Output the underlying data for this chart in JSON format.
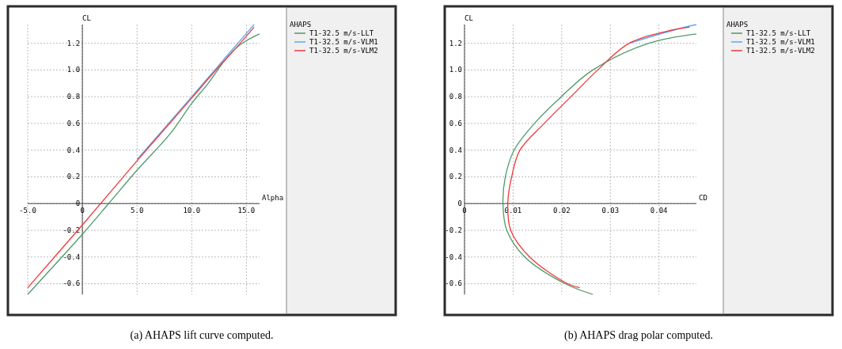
{
  "chart_data": [
    {
      "type": "line",
      "xlabel": "Alpha",
      "ylabel": "CL",
      "legend_title": "AHAPS",
      "legend": "right",
      "grid": true,
      "annotations": [
        "(a) AHAPS lift curve computed."
      ],
      "xlim": [
        -5,
        16.2
      ],
      "ylim": [
        -0.68,
        1.34
      ],
      "xticks": [
        {
          "value": -5,
          "label": "-5.0"
        },
        0,
        {
          "value": 5,
          "label": "5.0"
        },
        {
          "value": 10,
          "label": "10.0"
        },
        {
          "value": 15,
          "label": "15.0"
        }
      ],
      "yticks": [
        -0.6,
        -0.4,
        -0.2,
        0,
        0.2,
        0.4,
        0.6,
        0.8,
        {
          "value": 1,
          "label": "1.0"
        },
        1.2
      ],
      "series": [
        {
          "name": "T1-32.5 m/s-LLT",
          "color": "#4e9a6a",
          "x": [
            -5,
            0,
            2.4,
            5,
            8,
            10,
            11.5,
            13,
            14,
            15,
            16.2
          ],
          "values": [
            -0.68,
            -0.23,
            0,
            0.25,
            0.52,
            0.75,
            0.9,
            1.07,
            1.16,
            1.22,
            1.27
          ]
        },
        {
          "name": "T1-32.5 m/s-VLM1",
          "color": "#5aa9f5",
          "x": [
            5,
            10,
            12,
            14,
            15.7
          ],
          "values": [
            0.33,
            0.8,
            0.99,
            1.18,
            1.34
          ]
        },
        {
          "name": "T1-32.5 m/s-VLM2",
          "color": "#f0383a",
          "x": [
            -5,
            0,
            5,
            10,
            12,
            14,
            15.7
          ],
          "values": [
            -0.63,
            -0.16,
            0.32,
            0.79,
            0.98,
            1.16,
            1.32
          ]
        }
      ]
    },
    {
      "type": "line",
      "xlabel": "CD",
      "ylabel": "CL",
      "legend_title": "AHAPS",
      "legend": "right",
      "grid": true,
      "annotations": [
        "(b) AHAPS drag polar computed."
      ],
      "xlim": [
        0,
        0.0477
      ],
      "ylim": [
        -0.68,
        1.34
      ],
      "xticks": [
        0,
        0.01,
        0.02,
        0.03,
        0.04
      ],
      "yticks": [
        -0.6,
        -0.4,
        -0.2,
        0,
        0.2,
        0.4,
        0.6,
        0.8,
        {
          "value": 1,
          "label": "1.0"
        },
        1.2
      ],
      "series": [
        {
          "name": "T1-32.5 m/s-LLT",
          "color": "#4e9a6a",
          "x": [
            0.0264,
            0.0207,
            0.0124,
            0.0087,
            0.0079,
            0.0084,
            0.0102,
            0.0144,
            0.0199,
            0.0264,
            0.0379,
            0.0477
          ],
          "values": [
            -0.68,
            -0.6,
            -0.4,
            -0.2,
            0,
            0.2,
            0.4,
            0.6,
            0.8,
            1,
            1.2,
            1.27
          ]
        },
        {
          "name": "T1-32.5 m/s-VLM1",
          "color": "#5aa9f5",
          "x": [
            0.0339,
            0.0432,
            0.0477
          ],
          "values": [
            1.2,
            1.3,
            1.34
          ]
        },
        {
          "name": "T1-32.5 m/s-VLM2",
          "color": "#f0383a",
          "x": [
            0.0237,
            0.0212,
            0.0134,
            0.0095,
            0.0089,
            0.0097,
            0.0114,
            0.0164,
            0.0219,
            0.0274,
            0.0339,
            0.0429,
            0.0463
          ],
          "values": [
            -0.63,
            -0.6,
            -0.4,
            -0.2,
            0,
            0.2,
            0.4,
            0.6,
            0.8,
            1,
            1.2,
            1.3,
            1.32
          ]
        }
      ]
    }
  ]
}
